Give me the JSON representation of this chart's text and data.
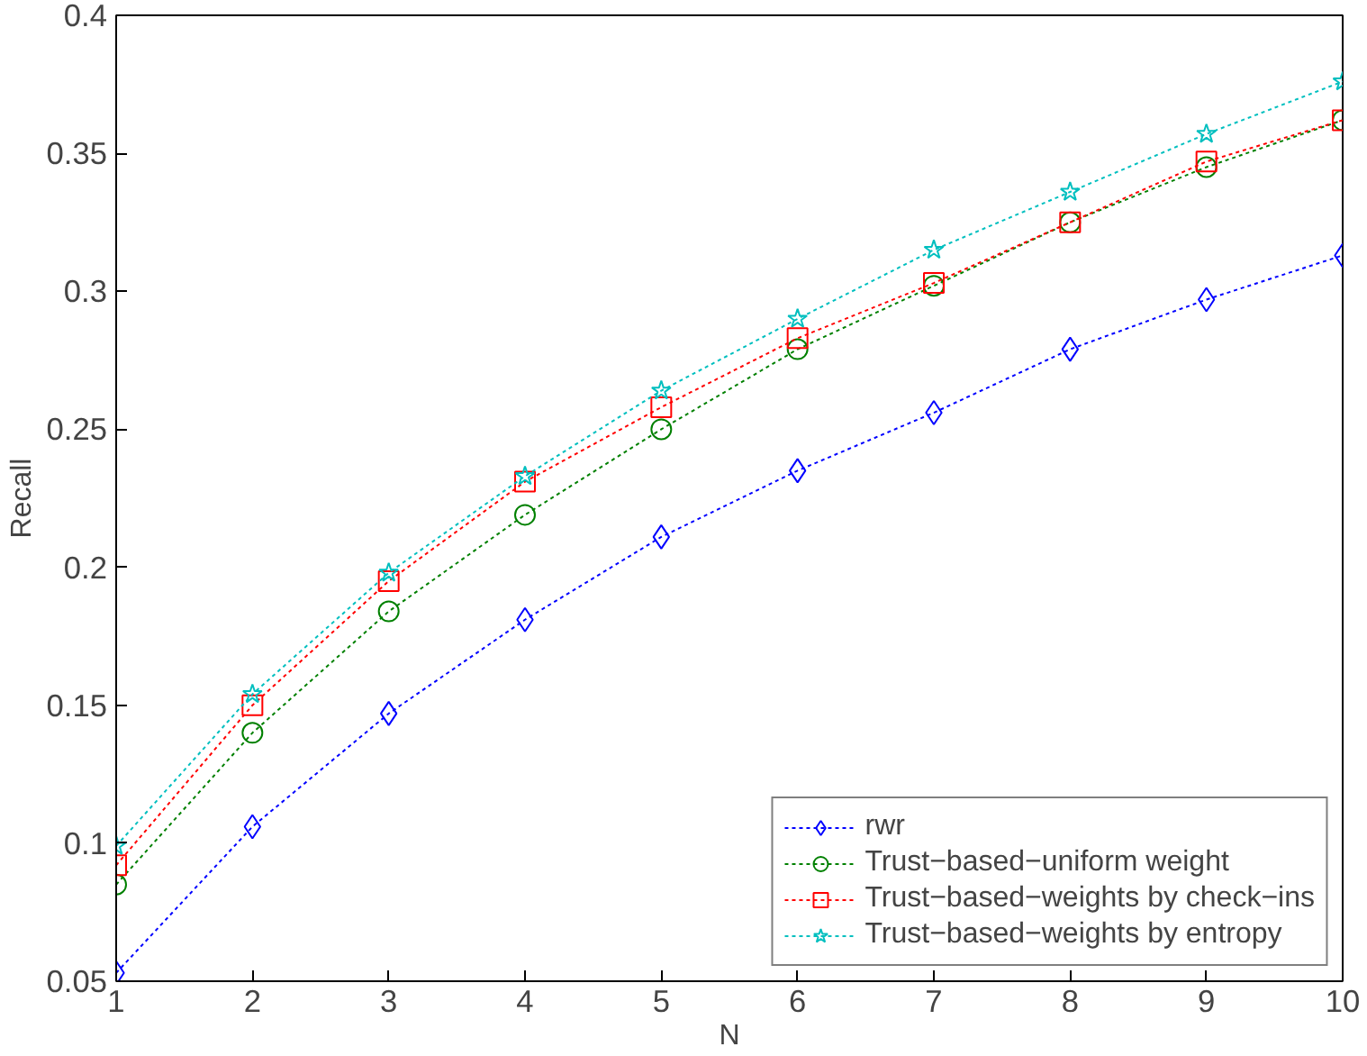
{
  "chart_data": {
    "type": "line",
    "xlabel": "N",
    "ylabel": "Recall",
    "x": [
      1,
      2,
      3,
      4,
      5,
      6,
      7,
      8,
      9,
      10
    ],
    "xlim": [
      1,
      10
    ],
    "xticks": [
      1,
      2,
      3,
      4,
      5,
      6,
      7,
      8,
      9,
      10
    ],
    "ylim": [
      0.05,
      0.4
    ],
    "yticks": [
      0.05,
      0.1,
      0.15,
      0.2,
      0.25,
      0.3,
      0.35,
      0.4
    ],
    "grid": false,
    "legend": "bottom right",
    "line_style": "dotted",
    "series": [
      {
        "name": "rwr",
        "color": "#0000ff",
        "marker": "diamond",
        "values": [
          0.053,
          0.106,
          0.147,
          0.181,
          0.211,
          0.235,
          0.256,
          0.279,
          0.297,
          0.313
        ]
      },
      {
        "name": "Trust−based−uniform weight",
        "color": "#008000",
        "marker": "circle",
        "values": [
          0.085,
          0.14,
          0.184,
          0.219,
          0.25,
          0.279,
          0.302,
          0.325,
          0.345,
          0.362
        ]
      },
      {
        "name": "Trust−based−weights by check−ins",
        "color": "#ff0000",
        "marker": "square",
        "values": [
          0.092,
          0.15,
          0.195,
          0.231,
          0.258,
          0.283,
          0.303,
          0.325,
          0.347,
          0.362
        ]
      },
      {
        "name": "Trust−based−weights by entropy",
        "color": "#00bfbf",
        "marker": "star",
        "values": [
          0.099,
          0.154,
          0.198,
          0.233,
          0.264,
          0.29,
          0.315,
          0.336,
          0.357,
          0.376
        ]
      }
    ]
  }
}
